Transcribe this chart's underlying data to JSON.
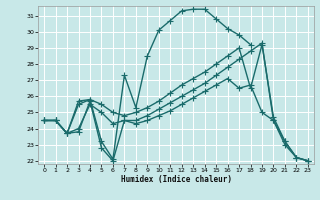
{
  "title": "",
  "xlabel": "Humidex (Indice chaleur)",
  "bg_color": "#c8e8e8",
  "grid_color": "#ffffff",
  "line_color": "#1a6b6b",
  "markersize": 2.5,
  "linewidth": 1.0,
  "xlim": [
    -0.5,
    23.5
  ],
  "ylim": [
    21.8,
    31.6
  ],
  "xticks": [
    0,
    1,
    2,
    3,
    4,
    5,
    6,
    7,
    8,
    9,
    10,
    11,
    12,
    13,
    14,
    15,
    16,
    17,
    18,
    19,
    20,
    21,
    22,
    23
  ],
  "yticks": [
    22,
    23,
    24,
    25,
    26,
    27,
    28,
    29,
    30,
    31
  ],
  "s1_x": [
    0,
    1,
    2,
    3,
    4,
    5,
    6,
    7,
    8,
    9,
    10,
    11,
    12,
    13,
    14,
    15,
    16,
    17,
    18
  ],
  "s1_y": [
    24.5,
    24.5,
    23.7,
    25.7,
    25.8,
    23.2,
    22.1,
    27.3,
    25.3,
    28.5,
    30.1,
    30.7,
    31.3,
    31.4,
    31.4,
    30.8,
    30.2,
    29.8,
    29.2
  ],
  "s2_x": [
    0,
    1,
    2,
    3,
    4,
    5,
    6,
    7,
    8,
    9,
    10,
    11,
    12,
    13,
    14,
    15,
    16,
    17,
    18,
    19,
    20,
    21,
    22,
    23
  ],
  "s2_y": [
    24.5,
    24.5,
    23.7,
    25.5,
    25.8,
    25.5,
    25.0,
    24.8,
    25.0,
    25.3,
    25.7,
    26.2,
    26.7,
    27.1,
    27.5,
    28.0,
    28.5,
    29.0,
    26.5,
    29.2,
    24.7,
    23.2,
    22.2,
    22.0
  ],
  "s3_x": [
    0,
    1,
    2,
    3,
    4,
    5,
    6,
    7,
    8,
    9,
    10,
    11,
    12,
    13,
    14,
    15,
    16,
    17,
    18,
    19,
    20,
    21,
    22,
    23
  ],
  "s3_y": [
    24.5,
    24.5,
    23.7,
    23.8,
    25.7,
    22.8,
    22.0,
    24.5,
    24.5,
    24.8,
    25.2,
    25.6,
    26.0,
    26.4,
    26.8,
    27.3,
    27.8,
    28.3,
    28.8,
    29.3,
    24.5,
    23.2,
    22.2,
    22.0
  ],
  "s4_x": [
    0,
    1,
    2,
    3,
    4,
    5,
    6,
    7,
    8,
    9,
    10,
    11,
    12,
    13,
    14,
    15,
    16,
    17,
    18,
    19,
    20,
    21,
    22,
    23
  ],
  "s4_y": [
    24.5,
    24.5,
    23.7,
    24.0,
    25.5,
    25.0,
    24.3,
    24.5,
    24.3,
    24.5,
    24.8,
    25.1,
    25.5,
    25.9,
    26.3,
    26.7,
    27.1,
    26.5,
    26.7,
    25.0,
    24.5,
    23.0,
    22.2,
    22.0
  ]
}
